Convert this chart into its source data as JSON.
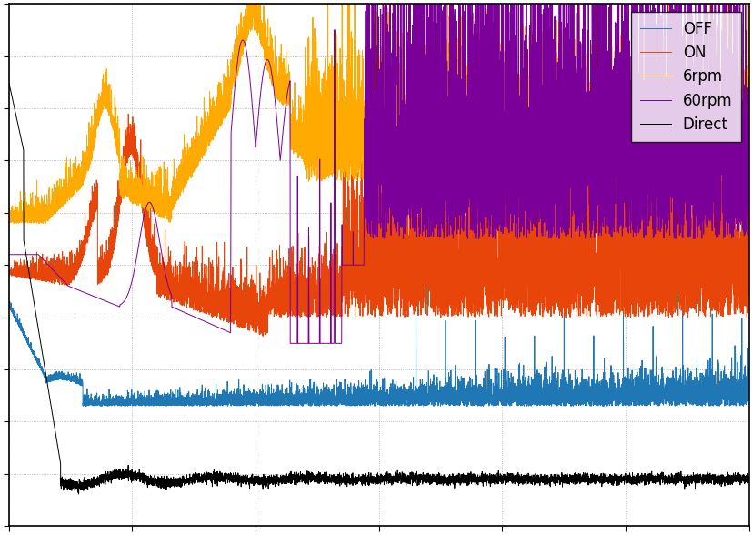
{
  "legend_labels": [
    "OFF",
    "ON",
    "6rpm",
    "60rpm",
    "Direct"
  ],
  "line_colors": [
    "#1f77b4",
    "#e8450a",
    "#ffaa00",
    "#7b0099",
    "#000000"
  ],
  "background_color": "#ffffff",
  "legend_loc": "upper right",
  "figsize": [
    8.28,
    5.88
  ],
  "dpi": 100,
  "grid_color": "#cccccc",
  "ylim": [
    0.0,
    1.0
  ],
  "xlim": [
    0,
    1
  ]
}
